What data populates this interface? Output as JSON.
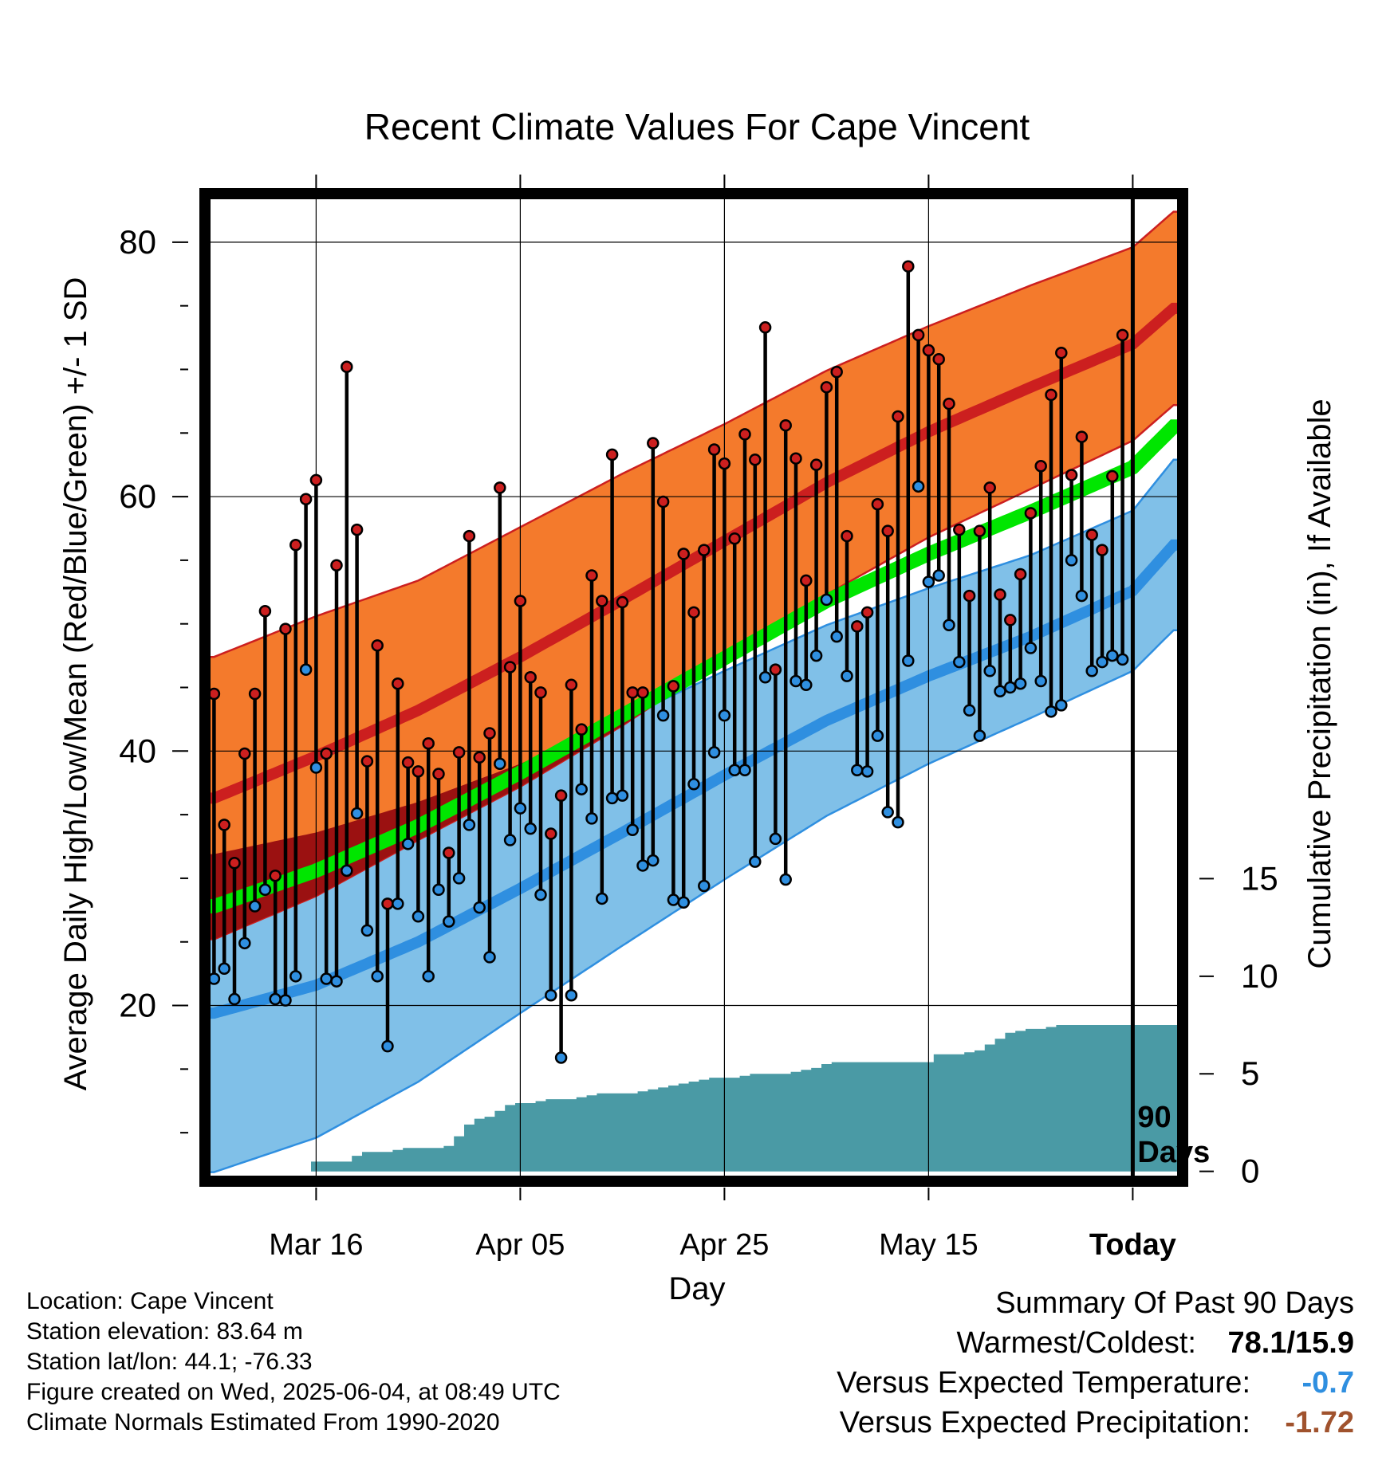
{
  "chart_data": {
    "type": "line",
    "title": "Recent Climate Values For Cape Vincent",
    "xlabel": "Day",
    "ylabel": "Average Daily High/Low/Mean (Red/Blue/Green) +/- 1 SD",
    "y2label": "Cumulative Precipitation (in), If Available",
    "xticks": [
      "Mar 16",
      "Apr 05",
      "Apr 25",
      "May 15",
      "Today"
    ],
    "xtick_days": [
      10,
      30,
      50,
      70,
      90
    ],
    "xlim": [
      -0.5,
      94.5
    ],
    "yticks": [
      20,
      40,
      60,
      80
    ],
    "ylim": [
      6.5,
      83.5
    ],
    "y2ticks": [
      0,
      5,
      10,
      15
    ],
    "y2lim": [
      -0.3,
      49.9
    ],
    "today_label": "90\nDays",
    "series": [
      {
        "name": "High",
        "color": "#cc1f1f",
        "values": [
          44.5,
          34.2,
          31.2,
          39.8,
          44.5,
          51,
          30.2,
          49.6,
          56.2,
          59.8,
          61.3,
          39.8,
          54.6,
          70.2,
          57.4,
          39.2,
          48.3,
          28,
          45.3,
          39.1,
          38.4,
          40.6,
          38.2,
          32,
          39.9,
          56.9,
          39.5,
          41.4,
          60.7,
          46.6,
          51.8,
          45.8,
          44.6,
          33.5,
          36.5,
          45.2,
          41.7,
          53.8,
          51.8,
          63.3,
          51.7,
          44.6,
          44.6,
          64.2,
          59.6,
          45.1,
          55.5,
          50.9,
          55.8,
          63.7,
          62.6,
          56.7,
          64.9,
          62.9,
          73.3,
          46.4,
          65.6,
          63,
          53.4,
          62.5,
          68.6,
          69.8,
          56.9,
          49.8,
          50.9,
          59.4,
          57.3,
          66.3,
          78.1,
          72.7,
          71.5,
          70.8,
          67.3,
          57.4,
          52.2,
          57.3,
          60.7,
          52.3,
          50.3,
          53.9,
          58.7,
          62.4,
          68,
          71.3,
          61.7,
          64.7,
          57,
          55.8,
          61.6,
          72.7
        ]
      },
      {
        "name": "Low",
        "color": "#2f8fe0",
        "values": [
          22.1,
          22.9,
          20.5,
          24.9,
          27.8,
          29.1,
          20.5,
          20.4,
          22.3,
          46.4,
          38.7,
          22.1,
          21.9,
          30.6,
          35.1,
          25.9,
          22.3,
          16.8,
          28,
          32.7,
          27,
          22.3,
          29.1,
          26.6,
          30,
          34.2,
          27.7,
          23.8,
          39,
          33,
          35.5,
          33.9,
          28.7,
          20.8,
          15.9,
          20.8,
          37,
          34.7,
          28.4,
          36.3,
          36.5,
          33.8,
          31,
          31.4,
          42.8,
          28.3,
          28.1,
          37.4,
          29.4,
          39.9,
          42.8,
          38.5,
          38.5,
          31.3,
          45.8,
          33.1,
          29.9,
          45.5,
          45.2,
          47.5,
          51.9,
          49,
          45.9,
          38.5,
          38.4,
          41.2,
          35.2,
          34.4,
          47.1,
          60.8,
          53.3,
          53.8,
          49.9,
          47,
          43.2,
          41.2,
          46.3,
          44.7,
          45,
          45.3,
          48.1,
          45.5,
          43.1,
          43.6,
          55,
          52.2,
          46.3,
          47,
          47.5,
          47.2
        ]
      }
    ],
    "normal_high": {
      "name": "High normal",
      "days": [
        0,
        10,
        20,
        30,
        40,
        50,
        60,
        70,
        80,
        90,
        94
      ],
      "mean": [
        36.3,
        39.6,
        43.2,
        47.4,
        51.9,
        56.5,
        61.1,
        65.1,
        68.6,
        72.0,
        74.8
      ],
      "sd": [
        11.1,
        11,
        10.2,
        10.2,
        9.9,
        9.2,
        8.8,
        8.3,
        8,
        7.6,
        7.6
      ]
    },
    "normal_low": {
      "name": "Low normal",
      "days": [
        0,
        10,
        20,
        30,
        40,
        50,
        60,
        70,
        80,
        90,
        94
      ],
      "mean": [
        19.4,
        21.6,
        25,
        29.2,
        33.6,
        38.1,
        42.4,
        45.9,
        49,
        52.6,
        56.2
      ],
      "sd": [
        12.5,
        12,
        11,
        9.8,
        8.9,
        8.2,
        7.5,
        6.9,
        6.4,
        6.3,
        6.7
      ]
    },
    "normal_mean": {
      "name": "Mean normal",
      "days": [
        0,
        10,
        20,
        30,
        40,
        50,
        60,
        70,
        80,
        90,
        94
      ],
      "mean": [
        27.8,
        30.6,
        34.1,
        38.3,
        42.8,
        47.3,
        51.8,
        55.5,
        58.8,
        62.3,
        65.5
      ]
    },
    "precip_cumulative": [
      0,
      0,
      0,
      0,
      0,
      0,
      0,
      0,
      0,
      0,
      0.5,
      0.5,
      0.5,
      0.5,
      0.8,
      1,
      1,
      1,
      1.1,
      1.2,
      1.2,
      1.2,
      1.2,
      1.3,
      1.8,
      2.4,
      2.7,
      2.8,
      3.1,
      3.4,
      3.5,
      3.5,
      3.6,
      3.7,
      3.7,
      3.7,
      3.8,
      3.9,
      4,
      4,
      4,
      4,
      4.1,
      4.2,
      4.3,
      4.4,
      4.5,
      4.6,
      4.7,
      4.8,
      4.8,
      4.8,
      4.9,
      5,
      5,
      5,
      5,
      5.1,
      5.2,
      5.3,
      5.5,
      5.6,
      5.6,
      5.6,
      5.6,
      5.6,
      5.6,
      5.6,
      5.6,
      5.6,
      5.6,
      6,
      6,
      6,
      6.1,
      6.2,
      6.5,
      6.8,
      7.1,
      7.2,
      7.3,
      7.3,
      7.4,
      7.5,
      7.5,
      7.5,
      7.5,
      7.5,
      7.5,
      7.5,
      7.5,
      7.5,
      7.5,
      7.5,
      7.5
    ],
    "colors": {
      "high_band": "#f47a2c",
      "high_mean": "#cc1f1f",
      "low_band": "#80c0e8",
      "low_mean": "#2f8fe0",
      "overlap": "#9b1111",
      "normal_mean": "#00e600",
      "precip": "#4a9aa5",
      "frame": "#000000"
    },
    "grid": true
  },
  "info": {
    "location": "Location: Cape Vincent",
    "elevation": "Station elevation: 83.64 m",
    "latlon": "Station lat/lon: 44.1; -76.33",
    "created": "Figure created on Wed, 2025-06-04, at 08:49 UTC",
    "normals": "Climate Normals Estimated From 1990-2020"
  },
  "summary": {
    "heading": "Summary Of Past 90 Days",
    "warmest_label": "Warmest/Coldest:",
    "warmest_value": "78.1/15.9",
    "temp_label": "Versus Expected Temperature:",
    "temp_value": "-0.7",
    "temp_color": "#2f8fe0",
    "precip_label": "Versus Expected Precipitation:",
    "precip_value": "-1.72",
    "precip_color": "#a0522d"
  }
}
